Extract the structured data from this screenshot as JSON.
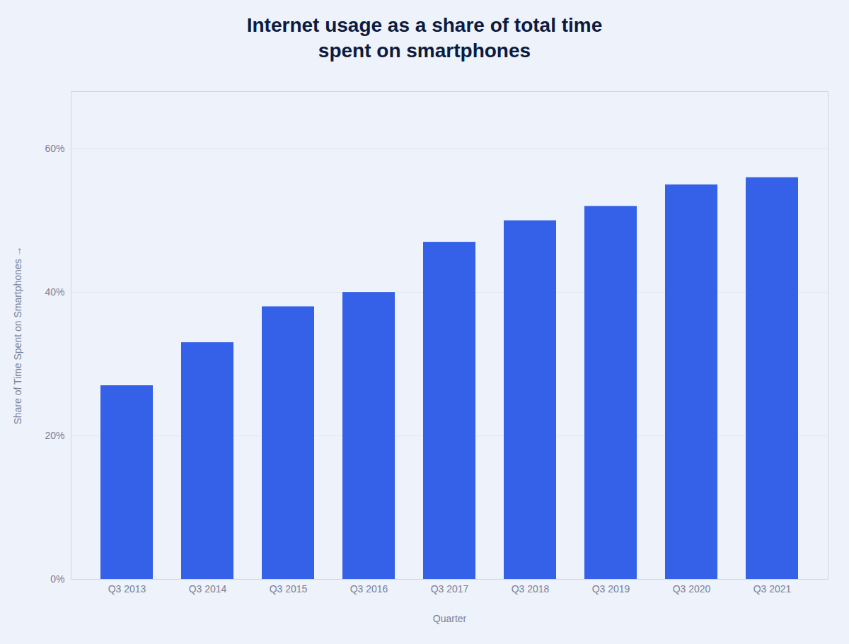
{
  "chart_data": {
    "type": "bar",
    "title": "Internet usage as a share of total time\nspent on smartphones",
    "xlabel": "Quarter",
    "ylabel": "Share of Time Spent on Smartphones",
    "categories": [
      "Q3 2013",
      "Q3 2014",
      "Q3 2015",
      "Q3 2016",
      "Q3 2017",
      "Q3 2018",
      "Q3 2019",
      "Q3 2020",
      "Q3 2021"
    ],
    "values": [
      27,
      33,
      38,
      40,
      47,
      50,
      52,
      55,
      56
    ],
    "color": "#3461E8",
    "ylim": [
      0,
      68
    ],
    "yticks": [
      {
        "value": 0,
        "label": "0%"
      },
      {
        "value": 20,
        "label": "20%"
      },
      {
        "value": 40,
        "label": "40%"
      },
      {
        "value": 60,
        "label": "60%"
      }
    ],
    "grid": true
  }
}
